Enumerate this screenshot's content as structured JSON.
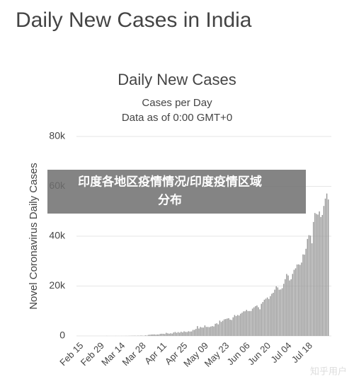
{
  "header": {
    "title": "Daily New Cases in India"
  },
  "chart_data": {
    "type": "bar",
    "title": "Daily New Cases",
    "subtitle": "Cases per Day",
    "note": "Data as of 0:00 GMT+0",
    "y_label": "Novel Coronavirus Daily Cases",
    "color": "#9a9a9a",
    "grid": true,
    "ylim": [
      0,
      80000
    ],
    "yticks": [
      0,
      {
        "value": 20000,
        "label": "20k"
      },
      {
        "value": 40000,
        "label": "40k"
      },
      {
        "value": 60000,
        "label": "60k"
      },
      {
        "value": 80000,
        "label": "80k"
      }
    ],
    "categories": [
      "Feb 15",
      null,
      null,
      null,
      null,
      null,
      null,
      null,
      null,
      null,
      null,
      null,
      null,
      null,
      "Feb 29",
      null,
      null,
      null,
      null,
      null,
      null,
      null,
      null,
      null,
      null,
      null,
      null,
      null,
      "Mar 14",
      null,
      null,
      null,
      null,
      null,
      null,
      null,
      null,
      null,
      null,
      null,
      null,
      null,
      "Mar 28",
      null,
      null,
      null,
      null,
      null,
      null,
      null,
      null,
      null,
      null,
      null,
      null,
      null,
      "Apr 11",
      null,
      null,
      null,
      null,
      null,
      null,
      null,
      null,
      null,
      null,
      null,
      null,
      null,
      "Apr 25",
      null,
      null,
      null,
      null,
      null,
      null,
      null,
      null,
      null,
      null,
      null,
      null,
      null,
      "May 09",
      null,
      null,
      null,
      null,
      null,
      null,
      null,
      null,
      null,
      null,
      null,
      null,
      null,
      "May 23",
      null,
      null,
      null,
      null,
      null,
      null,
      null,
      null,
      null,
      null,
      null,
      null,
      null,
      "Jun 06",
      null,
      null,
      null,
      null,
      null,
      null,
      null,
      null,
      null,
      null,
      null,
      null,
      null,
      "Jun 20",
      null,
      null,
      null,
      null,
      null,
      null,
      null,
      null,
      null,
      null,
      null,
      null,
      null,
      "Jul 04",
      null,
      null,
      null,
      null,
      null,
      null,
      null,
      null,
      null,
      null,
      null,
      null,
      null,
      "Jul 18",
      null,
      null,
      null,
      null,
      null,
      null,
      null,
      null,
      null,
      null,
      null,
      null,
      null
    ],
    "values": [
      0,
      0,
      0,
      0,
      0,
      0,
      0,
      0,
      0,
      0,
      0,
      0,
      0,
      0,
      0,
      0,
      3,
      1,
      22,
      2,
      1,
      3,
      5,
      4,
      13,
      6,
      11,
      9,
      20,
      11,
      6,
      23,
      14,
      38,
      50,
      86,
      66,
      103,
      37,
      121,
      70,
      160,
      100,
      64,
      227,
      146,
      424,
      486,
      560,
      579,
      609,
      484,
      573,
      565,
      813,
      871,
      854,
      758,
      1243,
      1031,
      886,
      1061,
      922,
      1370,
      1580,
      1239,
      1537,
      1292,
      1667,
      1408,
      1835,
      1607,
      1561,
      1873,
      1738,
      1801,
      2394,
      2442,
      2806,
      3932,
      2963,
      3587,
      3364,
      3344,
      4213,
      3607,
      3604,
      3524,
      3763,
      3942,
      3787,
      4864,
      5050,
      4630,
      6147,
      5611,
      6088,
      6654,
      6767,
      6977,
      7113,
      6535,
      6387,
      7466,
      8380,
      7964,
      8392,
      8171,
      8909,
      9304,
      9851,
      9887,
      10438,
      9971,
      9983,
      9987,
      10956,
      11458,
      11929,
      12217,
      11502,
      10667,
      12881,
      13586,
      14516,
      14933,
      15413,
      14821,
      15968,
      16922,
      17296,
      18552,
      19906,
      19459,
      18522,
      18653,
      19148,
      20903,
      22771,
      24850,
      24248,
      22252,
      22752,
      24879,
      26506,
      27114,
      28637,
      28701,
      28498,
      29429,
      32695,
      32607,
      34956,
      38902,
      40425,
      40243,
      37148,
      45720,
      49310,
      48916,
      48661,
      49931,
      47703,
      48513,
      52123,
      55078,
      57118,
      54736
    ]
  },
  "overlay": {
    "lines": [
      "印度各地区疫情情况/印度疫情区域",
      "分布"
    ]
  },
  "watermark": "知乎用户"
}
